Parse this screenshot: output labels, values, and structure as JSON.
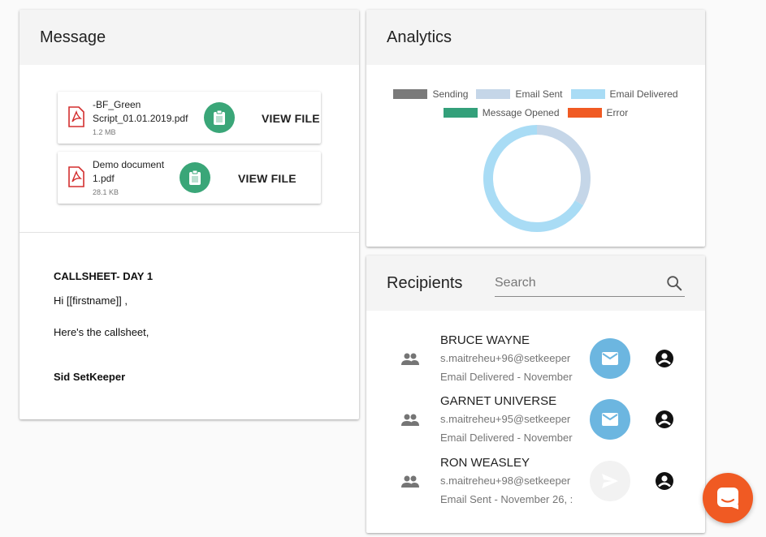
{
  "message": {
    "title": "Message",
    "files": [
      {
        "name_line1": "-BF_Green",
        "name_line2": "Script_01.01.2019.pdf",
        "size": "1.2 MB",
        "action": "VIEW FILE"
      },
      {
        "name_line1": "Demo document",
        "name_line2": "1.pdf",
        "size": "28.1 KB",
        "action": "VIEW FILE"
      }
    ],
    "body": {
      "heading": "CALLSHEET- DAY 1",
      "greeting": "Hi [[firstname]] ,",
      "line": "Here's the callsheet,",
      "signature": "Sid SetKeeper"
    }
  },
  "analytics": {
    "title": "Analytics",
    "legend": [
      {
        "label": "Sending",
        "color": "#7a7a7a"
      },
      {
        "label": "Email Sent",
        "color": "#c5d6e8"
      },
      {
        "label": "Email Delivered",
        "color": "#a9dcf5"
      },
      {
        "label": "Message Opened",
        "color": "#33a07a"
      },
      {
        "label": "Error",
        "color": "#f05a23"
      }
    ]
  },
  "chart_data": {
    "type": "pie",
    "variant": "donut",
    "categories": [
      "Sending",
      "Email Sent",
      "Email Delivered",
      "Message Opened",
      "Error"
    ],
    "values": [
      0,
      1,
      2,
      0,
      0
    ],
    "colors": [
      "#7a7a7a",
      "#c5d6e8",
      "#a9dcf5",
      "#33a07a",
      "#f05a23"
    ],
    "legend_position": "top"
  },
  "recipients": {
    "title": "Recipients",
    "search_placeholder": "Search",
    "items": [
      {
        "name": "BRUCE WAYNE",
        "email": "s.maitreheu+96@setkeeper",
        "status": "Email Delivered - November",
        "state": "delivered",
        "button_color": "#6cb6e0"
      },
      {
        "name": "GARNET UNIVERSE",
        "email": "s.maitreheu+95@setkeeper",
        "status": "Email Delivered - November",
        "state": "delivered",
        "button_color": "#6cb6e0"
      },
      {
        "name": "RON WEASLEY",
        "email": "s.maitreheu+98@setkeeper",
        "status": "Email Sent - November 26, :",
        "state": "sent",
        "button_color": "#f2f2f2"
      }
    ]
  },
  "icons": {
    "file": "pdf-icon",
    "clip": "clipboard-icon",
    "search": "search-icon",
    "people": "people-icon",
    "mail": "mail-icon",
    "send": "send-icon",
    "account": "account-circle-icon",
    "chat": "chat-icon"
  }
}
